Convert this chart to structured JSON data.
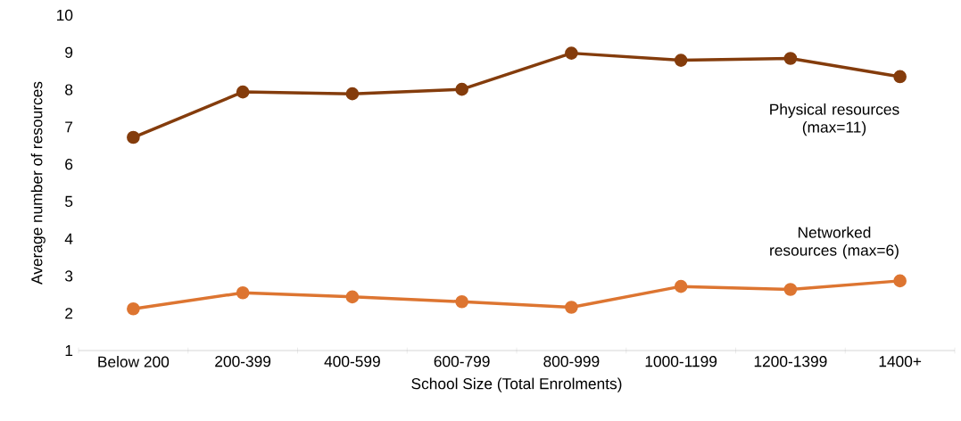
{
  "chart_data": {
    "type": "line",
    "xlabel": "School Size (Total Enrolments)",
    "ylabel": "Average number of resources",
    "categories": [
      "Below 200",
      "200-399",
      "400-599",
      "600-799",
      "800-999",
      "1000-1199",
      "1200-1399",
      "1400+"
    ],
    "series": [
      {
        "name": "Physical resources (max=11)",
        "color": "#843c0c",
        "values": [
          6.72,
          7.94,
          7.89,
          8.01,
          8.98,
          8.79,
          8.84,
          8.35
        ]
      },
      {
        "name": "Networked resources (max=6)",
        "color": "#dd7531",
        "values": [
          2.12,
          2.55,
          2.44,
          2.31,
          2.16,
          2.72,
          2.64,
          2.87
        ]
      }
    ],
    "ylim": [
      1,
      10
    ],
    "yticks": [
      1,
      2,
      3,
      4,
      5,
      6,
      7,
      8,
      9,
      10
    ],
    "grid": false,
    "legend": false,
    "marker": "circle",
    "line_style": "solid"
  }
}
